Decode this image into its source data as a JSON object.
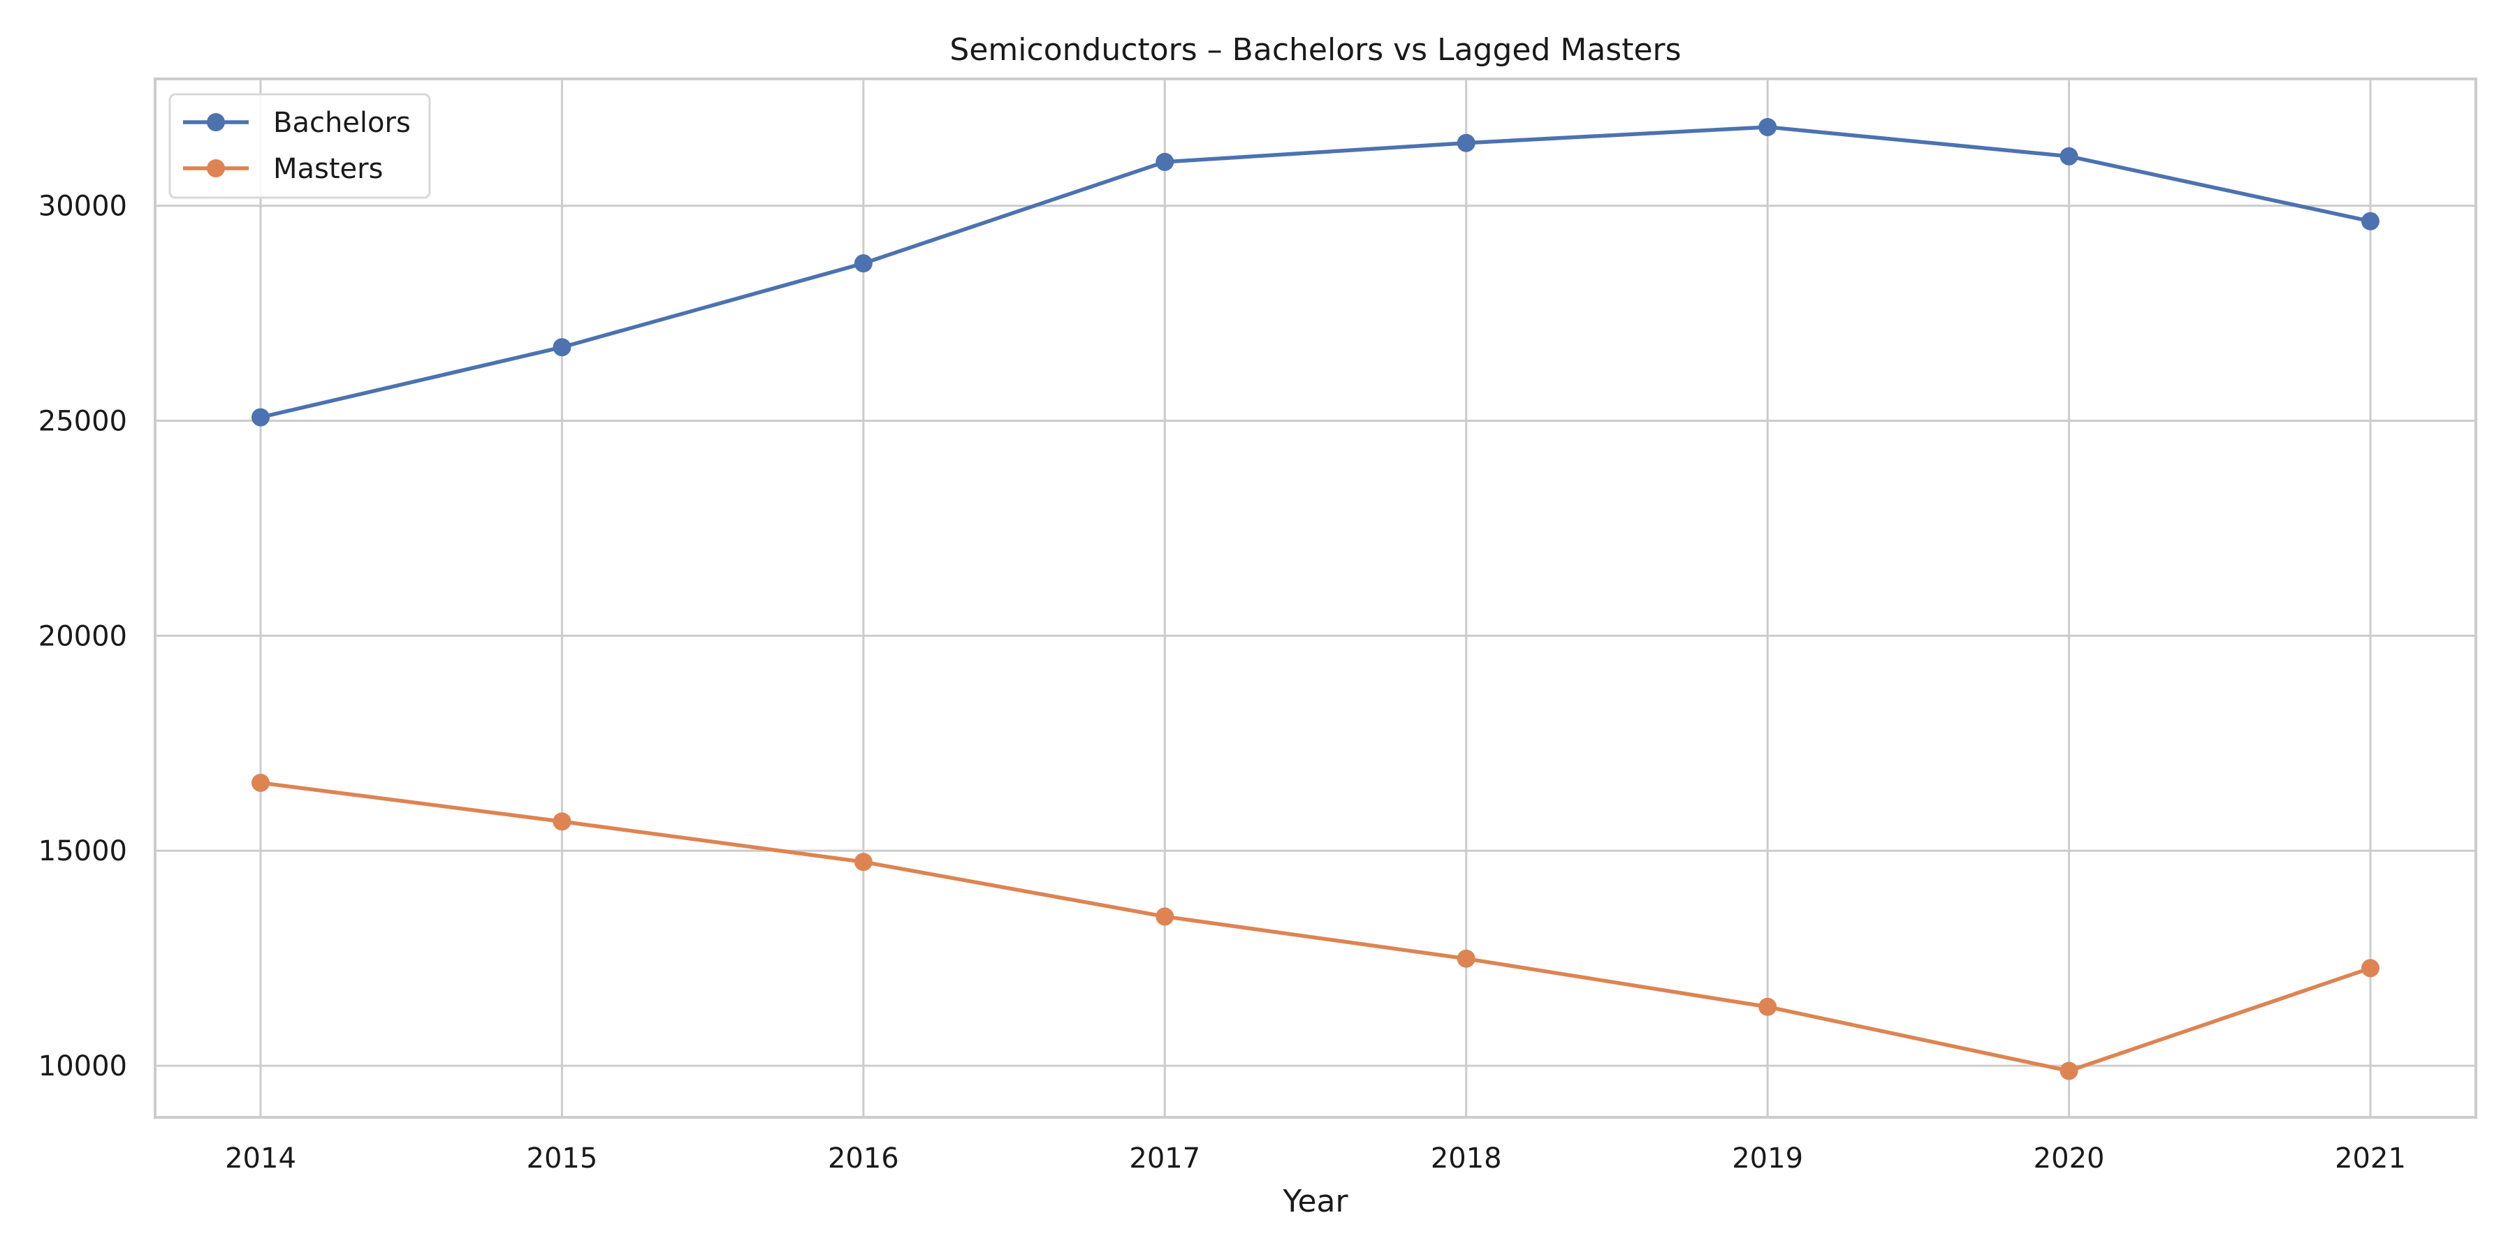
{
  "chart_data": {
    "type": "line",
    "title": "Semiconductors – Bachelors vs Lagged Masters",
    "xlabel": "Year",
    "ylabel": "",
    "x": [
      2014,
      2015,
      2016,
      2017,
      2018,
      2019,
      2020,
      2021
    ],
    "xlim": [
      2013.65,
      2021.35
    ],
    "ylim": [
      8800,
      32950
    ],
    "x_ticks": [
      2014,
      2015,
      2016,
      2017,
      2018,
      2019,
      2020,
      2021
    ],
    "y_ticks": [
      10000,
      15000,
      20000,
      25000,
      30000
    ],
    "grid": true,
    "legend_position": "top-left",
    "series": [
      {
        "name": "Bachelors",
        "color": "#4c72b0",
        "values": [
          25080,
          26710,
          28660,
          31020,
          31460,
          31830,
          31150,
          29640
        ]
      },
      {
        "name": "Masters",
        "color": "#dd8452",
        "values": [
          16580,
          15680,
          14740,
          13470,
          12490,
          11370,
          9880,
          12270
        ]
      }
    ]
  }
}
